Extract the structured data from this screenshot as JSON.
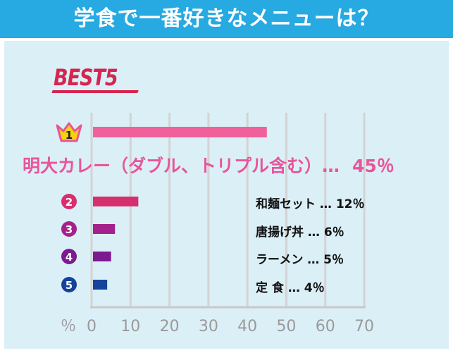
{
  "title": "学食で一番好きなメニューは？",
  "badge": "BEST5",
  "top_item": {
    "name": "明大カレー（ダブル、トリプル含む）…",
    "pct": "45％"
  },
  "items": [
    {
      "rank": "2",
      "text": "和麺セット … 12％"
    },
    {
      "rank": "3",
      "text": "唐揚げ丼 … 6％"
    },
    {
      "rank": "4",
      "text": "ラーメン … 5％"
    },
    {
      "rank": "5",
      "text": "定 食 … 4％"
    }
  ],
  "rank1": "1",
  "axis_unit": "％",
  "colors": {
    "header": "#27a9e1",
    "panel": "#dbeff7",
    "bars": [
      "#f0619b",
      "#d62f6e",
      "#a4218b",
      "#7b1b8f",
      "#15429a"
    ]
  },
  "chart_data": {
    "type": "bar",
    "orientation": "horizontal",
    "categories": [
      "明大カレー（ダブル、トリプル含む）",
      "和麺セット",
      "唐揚げ丼",
      "ラーメン",
      "定食"
    ],
    "values": [
      45,
      12,
      6,
      5,
      4
    ],
    "xlim": [
      0,
      70
    ],
    "xticks": [
      0,
      10,
      20,
      30,
      40,
      50,
      60,
      70
    ],
    "xlabel": "％",
    "grid": true
  }
}
